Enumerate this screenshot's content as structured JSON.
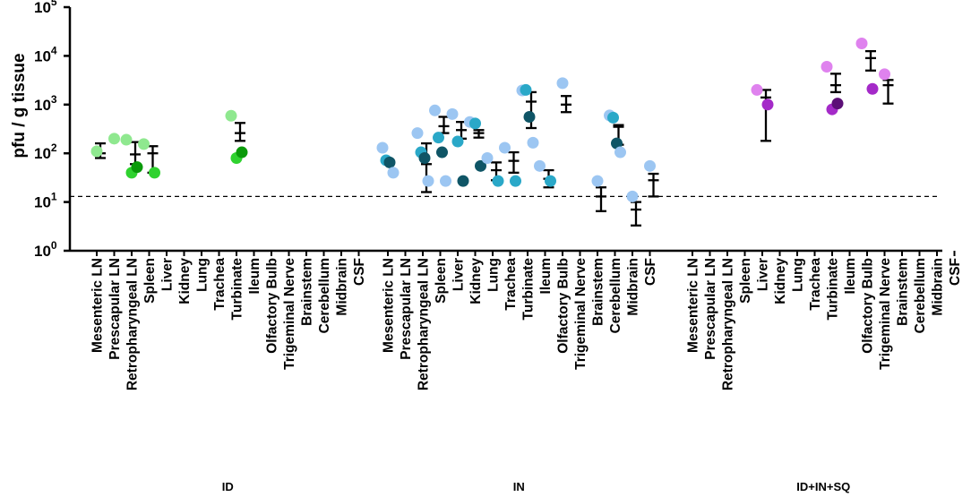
{
  "chart_data": {
    "type": "scatter",
    "title": "",
    "ylabel": "pfu / g tissue",
    "yscale": "log10",
    "ylim": [
      1,
      100000
    ],
    "yticks": [
      {
        "value": 1,
        "base": "10",
        "exp": "0"
      },
      {
        "value": 10,
        "base": "10",
        "exp": "1"
      },
      {
        "value": 100,
        "base": "10",
        "exp": "2"
      },
      {
        "value": 1000,
        "base": "10",
        "exp": "3"
      },
      {
        "value": 10000,
        "base": "10",
        "exp": "4"
      },
      {
        "value": 100000,
        "base": "10",
        "exp": "5"
      }
    ],
    "limit_of_detection": 13,
    "categories": [
      "Mesenteric LN",
      "Prescapular LN",
      "Retropharyngeal LN",
      "Spleen",
      "Liver",
      "Kidney",
      "Lung",
      "Trachea",
      "Turbinate",
      "Ileum",
      "Olfactory Bulb",
      "Trigeminal Nerve",
      "Brainstem",
      "Cerebellum",
      "Midbrain",
      "CSF"
    ],
    "groups": [
      {
        "name": "ID",
        "colors": [
          "#8fe88f",
          "#2fd22f",
          "#0a9a0a"
        ],
        "points": [
          {
            "cat": 0,
            "values": [
              110
            ]
          },
          {
            "cat": 1,
            "values": [
              200
            ]
          },
          {
            "cat": 2,
            "values": [
              190,
              40,
              52
            ]
          },
          {
            "cat": 3,
            "values": [
              155,
              40
            ]
          },
          {
            "cat": 8,
            "values": [
              590,
              80,
              105
            ]
          }
        ],
        "errorbars": [
          {
            "cat": 0,
            "mean": 100,
            "low": 80,
            "high": 160
          },
          {
            "cat": 2,
            "mean": 95,
            "low": 60,
            "high": 170
          },
          {
            "cat": 3,
            "mean": 100,
            "low": 40,
            "high": 140
          },
          {
            "cat": 8,
            "mean": 260,
            "low": 180,
            "high": 420
          }
        ]
      },
      {
        "name": "IN",
        "colors": [
          "#9cc6f2",
          "#2aa8c8",
          "#0f5566"
        ],
        "points": [
          {
            "cat": 0,
            "values": [
              130,
              72,
              65,
              40
            ]
          },
          {
            "cat": 2,
            "values": [
              260,
              105,
              80,
              27
            ]
          },
          {
            "cat": 3,
            "values": [
              760,
              210,
              105,
              27
            ]
          },
          {
            "cat": 4,
            "values": [
              640,
              175,
              27
            ]
          },
          {
            "cat": 5,
            "values": [
              440,
              410,
              55
            ]
          },
          {
            "cat": 6,
            "values": [
              80,
              27
            ]
          },
          {
            "cat": 7,
            "values": [
              130,
              27
            ]
          },
          {
            "cat": 8,
            "values": [
              1950,
              2000,
              560,
              165
            ]
          },
          {
            "cat": 9,
            "values": [
              55,
              27
            ]
          },
          {
            "cat": 10,
            "values": [
              2750
            ]
          },
          {
            "cat": 12,
            "values": [
              27
            ]
          },
          {
            "cat": 13,
            "values": [
              600,
              540,
              160,
              105
            ]
          },
          {
            "cat": 14,
            "values": [
              13
            ]
          },
          {
            "cat": 15,
            "values": [
              55
            ]
          }
        ],
        "errorbars": [
          {
            "cat": 2,
            "mean": 60,
            "low": 16,
            "high": 160
          },
          {
            "cat": 3,
            "mean": 360,
            "low": 260,
            "high": 560
          },
          {
            "cat": 4,
            "mean": 300,
            "low": 200,
            "high": 440
          },
          {
            "cat": 5,
            "mean": 260,
            "low": 210,
            "high": 300
          },
          {
            "cat": 6,
            "mean": 45,
            "low": 28,
            "high": 65
          },
          {
            "cat": 7,
            "mean": 70,
            "low": 40,
            "high": 105
          },
          {
            "cat": 8,
            "mean": 1150,
            "low": 330,
            "high": 1800
          },
          {
            "cat": 9,
            "mean": 30,
            "low": 20,
            "high": 45
          },
          {
            "cat": 10,
            "mean": 1000,
            "low": 700,
            "high": 1500
          },
          {
            "cat": 12,
            "mean": 13,
            "low": 6.5,
            "high": 20
          },
          {
            "cat": 13,
            "mean": 350,
            "low": 150,
            "high": 380
          },
          {
            "cat": 14,
            "mean": 7,
            "low": 3.3,
            "high": 10
          },
          {
            "cat": 15,
            "mean": 28,
            "low": 13,
            "high": 38
          }
        ]
      },
      {
        "name": "ID+IN+SQ",
        "colors": [
          "#df82ee",
          "#a42ac8",
          "#5c0f77"
        ],
        "points": [
          {
            "cat": 4,
            "values": [
              2000,
              1000
            ]
          },
          {
            "cat": 8,
            "values": [
              6000,
              800,
              1050
            ]
          },
          {
            "cat": 10,
            "values": [
              18000,
              2100
            ]
          },
          {
            "cat": 11,
            "values": [
              4200
            ]
          }
        ],
        "errorbars": [
          {
            "cat": 4,
            "mean": 1400,
            "low": 180,
            "high": 2000
          },
          {
            "cat": 8,
            "mean": 2500,
            "low": 1800,
            "high": 4300
          },
          {
            "cat": 10,
            "mean": 9000,
            "low": 5000,
            "high": 12500
          },
          {
            "cat": 11,
            "mean": 2500,
            "low": 1050,
            "high": 3200
          }
        ]
      }
    ]
  }
}
